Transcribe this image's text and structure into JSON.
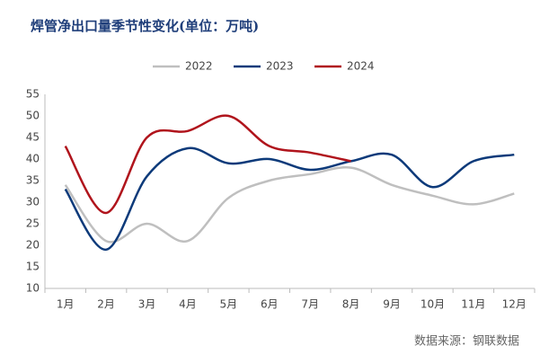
{
  "chart_data": {
    "type": "line",
    "title": "焊管净出口量季节性变化(单位：万吨)",
    "source": "数据来源：钢联数据",
    "categories": [
      "1月",
      "2月",
      "3月",
      "4月",
      "5月",
      "6月",
      "7月",
      "8月",
      "9月",
      "10月",
      "11月",
      "12月"
    ],
    "series": [
      {
        "name": "2022",
        "color": "#bfbfbf",
        "values": [
          34,
          21,
          25,
          21,
          31,
          35,
          36.5,
          38,
          34,
          31.5,
          29.5,
          32
        ]
      },
      {
        "name": "2023",
        "color": "#0d3a7a",
        "values": [
          33,
          19,
          36,
          42.5,
          39,
          40,
          37.5,
          39.5,
          41,
          33.5,
          39.5,
          41
        ]
      },
      {
        "name": "2024",
        "color": "#b0141c",
        "values": [
          43,
          27.5,
          45,
          46.5,
          50,
          43,
          41.5,
          39.5,
          null,
          null,
          null,
          null
        ]
      }
    ],
    "ylim": [
      10,
      55
    ],
    "yticks": [
      10,
      15,
      20,
      25,
      30,
      35,
      40,
      45,
      50,
      55
    ],
    "legend": "top"
  }
}
